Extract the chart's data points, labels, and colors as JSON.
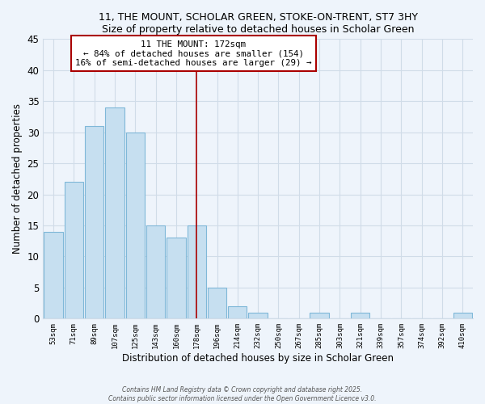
{
  "title_line1": "11, THE MOUNT, SCHOLAR GREEN, STOKE-ON-TRENT, ST7 3HY",
  "title_line2": "Size of property relative to detached houses in Scholar Green",
  "xlabel": "Distribution of detached houses by size in Scholar Green",
  "ylabel": "Number of detached properties",
  "bar_labels": [
    "53sqm",
    "71sqm",
    "89sqm",
    "107sqm",
    "125sqm",
    "143sqm",
    "160sqm",
    "178sqm",
    "196sqm",
    "214sqm",
    "232sqm",
    "250sqm",
    "267sqm",
    "285sqm",
    "303sqm",
    "321sqm",
    "339sqm",
    "357sqm",
    "374sqm",
    "392sqm",
    "410sqm"
  ],
  "bar_values": [
    14,
    22,
    31,
    34,
    30,
    15,
    13,
    15,
    5,
    2,
    1,
    0,
    0,
    1,
    0,
    1,
    0,
    0,
    0,
    0,
    1
  ],
  "bar_color": "#c6dff0",
  "bar_edge_color": "#7fb8d8",
  "vline_x_index": 7,
  "vline_color": "#aa0000",
  "annotation_title": "11 THE MOUNT: 172sqm",
  "annotation_line1": "← 84% of detached houses are smaller (154)",
  "annotation_line2": "16% of semi-detached houses are larger (29) →",
  "annotation_box_color": "#ffffff",
  "annotation_box_edge": "#aa0000",
  "ylim": [
    0,
    45
  ],
  "yticks": [
    0,
    5,
    10,
    15,
    20,
    25,
    30,
    35,
    40,
    45
  ],
  "background_color": "#eef4fb",
  "plot_bg_color": "#eef4fb",
  "grid_color": "#d0dce8",
  "footer_line1": "Contains HM Land Registry data © Crown copyright and database right 2025.",
  "footer_line2": "Contains public sector information licensed under the Open Government Licence v3.0."
}
